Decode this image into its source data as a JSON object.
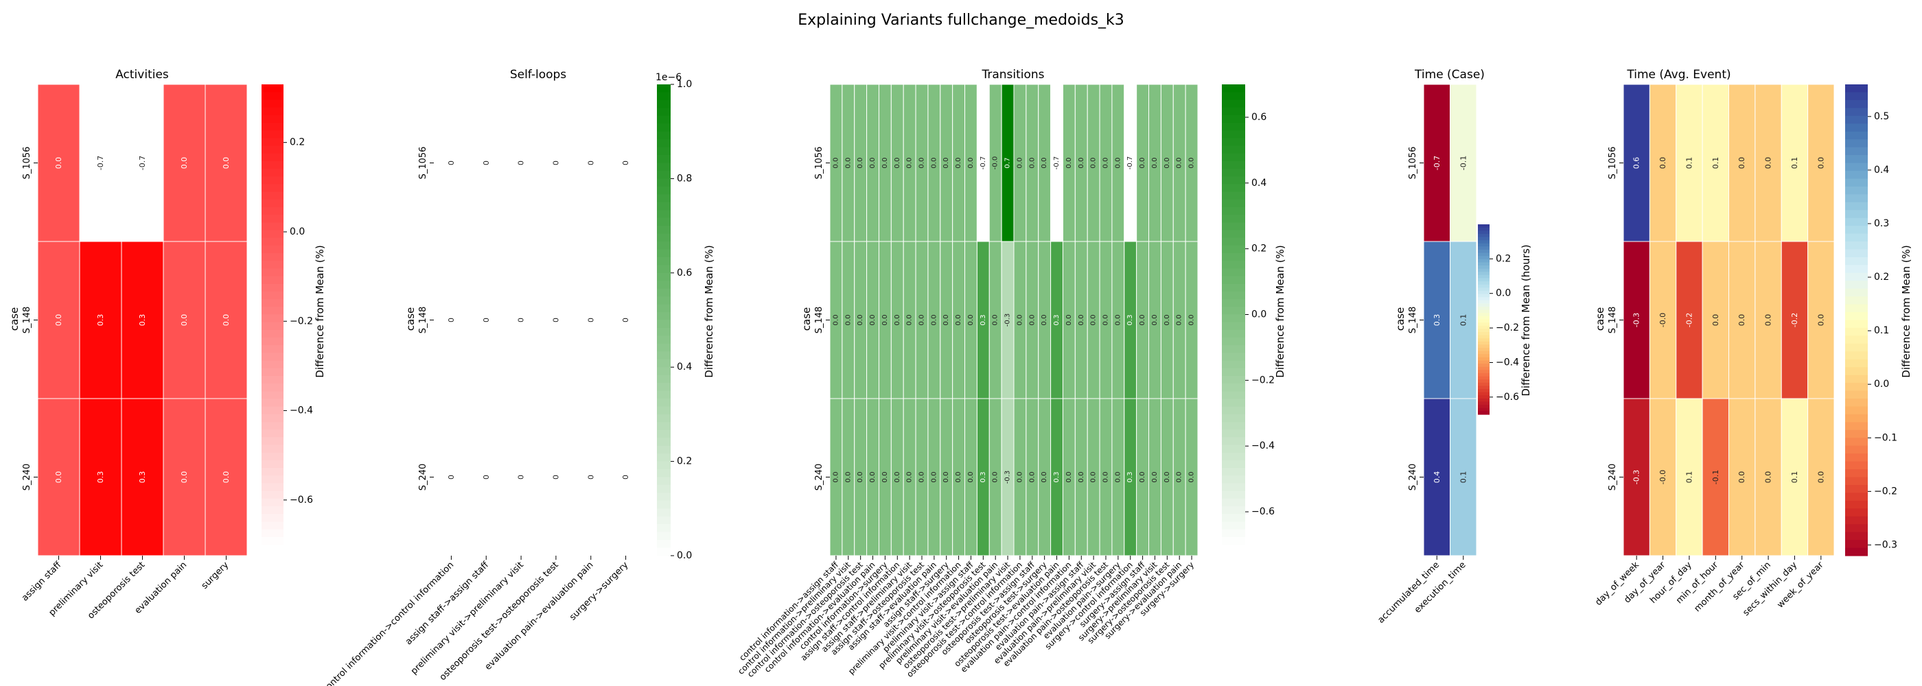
{
  "figure": {
    "title": "Explaining Variants fullchange_medoids_k3"
  },
  "chart_data": [
    {
      "type": "heatmap",
      "title": "Activities",
      "ylabel": "case",
      "colorbar_label": "Difference from Mean (%)",
      "colormap": "white-red",
      "colors": [
        "#ffffff",
        "#ff0000"
      ],
      "vmin": -0.7,
      "vmax": 0.33,
      "colorbar_ticks": [
        0.2,
        0.0,
        -0.2,
        -0.4,
        -0.6
      ],
      "colorbar_tick_labels": [
        "0.2",
        "0.0",
        "−0.2",
        "−0.4",
        "−0.6"
      ],
      "rows": [
        "S_1056",
        "S_148",
        "S_240"
      ],
      "columns": [
        "assign staff",
        "preliminary visit",
        "osteoporosis test",
        "evaluation pain",
        "surgery"
      ],
      "values": [
        [
          0.0,
          -0.7,
          -0.7,
          0.0,
          0.0
        ],
        [
          0.0,
          0.3,
          0.3,
          0.0,
          0.0
        ],
        [
          0.0,
          0.3,
          0.3,
          0.0,
          0.0
        ]
      ],
      "labels": [
        [
          "0.0",
          "-0.7",
          "-0.7",
          "0.0",
          "0.0"
        ],
        [
          "0.0",
          "0.3",
          "0.3",
          "0.0",
          "0.0"
        ],
        [
          "0.0",
          "0.3",
          "0.3",
          "0.0",
          "0.0"
        ]
      ]
    },
    {
      "type": "heatmap",
      "title": "Self-loops",
      "ylabel": "case",
      "colorbar_label": "Difference from Mean (%)",
      "colorbar_offset_text": "1e−6",
      "colormap": "white-green",
      "colors": [
        "#ffffff",
        "#008000"
      ],
      "vmin": 0.0,
      "vmax": 1.0,
      "blank_cells": true,
      "colorbar_ticks": [
        1.0,
        0.8,
        0.6,
        0.4,
        0.2,
        0.0
      ],
      "colorbar_tick_labels": [
        "1.0",
        "0.8",
        "0.6",
        "0.4",
        "0.2",
        "0.0"
      ],
      "rows": [
        "S_1056",
        "S_148",
        "S_240"
      ],
      "columns": [
        "control information->control information",
        "assign staff->assign staff",
        "preliminary visit->preliminary visit",
        "osteoporosis test->osteoporosis test",
        "evaluation pain->evaluation pain",
        "surgery->surgery"
      ],
      "values": [
        [
          0,
          0,
          0,
          0,
          0,
          0
        ],
        [
          0,
          0,
          0,
          0,
          0,
          0
        ],
        [
          0,
          0,
          0,
          0,
          0,
          0
        ]
      ],
      "labels": [
        [
          "0",
          "0",
          "0",
          "0",
          "0",
          "0"
        ],
        [
          "0",
          "0",
          "0",
          "0",
          "0",
          "0"
        ],
        [
          "0",
          "0",
          "0",
          "0",
          "0",
          "0"
        ]
      ]
    },
    {
      "type": "heatmap",
      "title": "Transitions",
      "ylabel": "case",
      "colorbar_label": "Difference from Mean (%)",
      "colormap": "white-green",
      "colors": [
        "#ffffff",
        "#008000"
      ],
      "vmin": -0.7,
      "vmax": 0.7,
      "colorbar_ticks": [
        0.6,
        0.4,
        0.2,
        0.0,
        -0.2,
        -0.4,
        -0.6
      ],
      "colorbar_tick_labels": [
        "0.6",
        "0.4",
        "0.2",
        "0.0",
        "−0.2",
        "−0.4",
        "−0.6"
      ],
      "rows": [
        "S_1056",
        "S_148",
        "S_240"
      ],
      "columns": [
        "control information->assign staff",
        "control information->preliminary visit",
        "control information->osteoporosis test",
        "control information->evaluation pain",
        "control information->surgery",
        "assign staff->control information",
        "assign staff->preliminary visit",
        "assign staff->osteoporosis test",
        "assign staff->evaluation pain",
        "assign staff->surgery",
        "preliminary visit->control information",
        "preliminary visit->assign staff",
        "preliminary visit->osteoporosis test",
        "preliminary visit->evaluation pain",
        "osteoporosis test->preliminary visit",
        "osteoporosis test->control information",
        "osteoporosis test->assign staff",
        "osteoporosis test->surgery",
        "osteoporosis test->evaluation pain",
        "evaluation pain->control information",
        "evaluation pain->assign staff",
        "evaluation pain->preliminary visit",
        "evaluation pain->osteoporosis test",
        "evaluation pain->surgery",
        "surgery->control information",
        "surgery->assign staff",
        "surgery->preliminary visit",
        "surgery->osteoporosis test",
        "surgery->evaluation pain",
        "surgery->surgery"
      ],
      "values": [
        [
          0.0,
          0.0,
          0.0,
          0.0,
          0.0,
          0.0,
          0.0,
          0.0,
          0.0,
          0.0,
          0.0,
          0.0,
          -0.7,
          -0.0,
          0.7,
          0.0,
          0.0,
          0.0,
          -0.7,
          0.0,
          0.0,
          0.0,
          0.0,
          0.0,
          -0.7,
          0.0,
          0.0,
          0.0,
          0.0,
          0.0
        ],
        [
          0.0,
          0.0,
          0.0,
          0.0,
          0.0,
          0.0,
          0.0,
          0.0,
          0.0,
          0.0,
          0.0,
          0.0,
          0.3,
          0.0,
          -0.3,
          0.0,
          0.0,
          0.0,
          0.3,
          0.0,
          0.0,
          0.0,
          0.0,
          0.0,
          0.3,
          0.0,
          0.0,
          0.0,
          0.0,
          0.0
        ],
        [
          0.0,
          0.0,
          0.0,
          0.0,
          0.0,
          0.0,
          0.0,
          0.0,
          0.0,
          0.0,
          0.0,
          0.0,
          0.3,
          0.0,
          -0.3,
          0.0,
          0.0,
          0.0,
          0.3,
          0.0,
          0.0,
          0.0,
          0.0,
          0.0,
          0.3,
          0.0,
          0.0,
          0.0,
          0.0,
          0.0
        ]
      ],
      "labels": [
        [
          "0.0",
          "0.0",
          "0.0",
          "0.0",
          "0.0",
          "0.0",
          "0.0",
          "0.0",
          "0.0",
          "0.0",
          "0.0",
          "0.0",
          "-0.7",
          "-0.0",
          "0.7",
          "0.0",
          "0.0",
          "0.0",
          "-0.7",
          "0.0",
          "0.0",
          "0.0",
          "0.0",
          "0.0",
          "-0.7",
          "0.0",
          "0.0",
          "0.0",
          "0.0",
          "0.0"
        ],
        [
          "0.0",
          "0.0",
          "0.0",
          "0.0",
          "0.0",
          "0.0",
          "0.0",
          "0.0",
          "0.0",
          "0.0",
          "0.0",
          "0.0",
          "0.3",
          "0.0",
          "-0.3",
          "0.0",
          "0.0",
          "0.0",
          "0.3",
          "0.0",
          "0.0",
          "0.0",
          "0.0",
          "0.0",
          "0.3",
          "0.0",
          "0.0",
          "0.0",
          "0.0",
          "0.0"
        ],
        [
          "0.0",
          "0.0",
          "0.0",
          "0.0",
          "0.0",
          "0.0",
          "0.0",
          "0.0",
          "0.0",
          "0.0",
          "0.0",
          "0.0",
          "0.3",
          "0.0",
          "-0.3",
          "0.0",
          "0.0",
          "0.0",
          "0.3",
          "0.0",
          "0.0",
          "0.0",
          "0.0",
          "0.0",
          "0.3",
          "0.0",
          "0.0",
          "0.0",
          "0.0",
          "0.0"
        ]
      ]
    },
    {
      "type": "heatmap",
      "title": "Time (Case)",
      "ylabel": "case",
      "colorbar_label": "Difference from Mean (hours)",
      "colormap": "RdYlBu",
      "colors": [
        "#a50026",
        "#d73027",
        "#f46d43",
        "#fdae61",
        "#fee090",
        "#ffffbf",
        "#e0f3f8",
        "#abd9e9",
        "#74add1",
        "#4575b4",
        "#313695"
      ],
      "vmin": -0.7,
      "vmax": 0.4,
      "colorbar_ticks": [
        0.2,
        0.0,
        -0.2,
        -0.4,
        -0.6
      ],
      "colorbar_tick_labels": [
        "0.2",
        "0.0",
        "−0.2",
        "−0.4",
        "−0.6"
      ],
      "rows": [
        "S_1056",
        "S_148",
        "S_240"
      ],
      "columns": [
        "accumulated_time",
        "execution_time"
      ],
      "values": [
        [
          -0.7,
          -0.1
        ],
        [
          0.3,
          0.1
        ],
        [
          0.4,
          0.1
        ]
      ],
      "labels": [
        [
          "-0.7",
          "-0.1"
        ],
        [
          "0.3",
          "0.1"
        ],
        [
          "0.4",
          "0.1"
        ]
      ]
    },
    {
      "type": "heatmap",
      "title": "Time (Avg. Event)",
      "ylabel": "case",
      "colorbar_label": "Difference from Mean (%)",
      "colormap": "RdYlBu",
      "colors": [
        "#a50026",
        "#d73027",
        "#f46d43",
        "#fdae61",
        "#fee090",
        "#ffffbf",
        "#e0f3f8",
        "#abd9e9",
        "#74add1",
        "#4575b4",
        "#313695"
      ],
      "vmin": -0.32,
      "vmax": 0.56,
      "colorbar_ticks": [
        0.5,
        0.4,
        0.3,
        0.2,
        0.1,
        0.0,
        -0.1,
        -0.2,
        -0.3
      ],
      "colorbar_tick_labels": [
        "0.5",
        "0.4",
        "0.3",
        "0.2",
        "0.1",
        "0.0",
        "−0.1",
        "−0.2",
        "−0.3"
      ],
      "rows": [
        "S_1056",
        "S_148",
        "S_240"
      ],
      "columns": [
        "day_of_week",
        "day_of_year",
        "hour_of_day",
        "min_of_hour",
        "month_of_year",
        "sec_of_min",
        "secs_within_day",
        "week_of_year"
      ],
      "values": [
        [
          0.55,
          0.0,
          0.1,
          0.1,
          0.0,
          0.0,
          0.1,
          0.0
        ],
        [
          -0.32,
          -0.0,
          -0.2,
          0.0,
          0.0,
          0.0,
          -0.2,
          0.0
        ],
        [
          -0.27,
          -0.0,
          0.1,
          -0.15,
          0.0,
          0.0,
          0.1,
          0.0
        ]
      ],
      "labels": [
        [
          "0.6",
          "0.0",
          "0.1",
          "0.1",
          "0.0",
          "0.0",
          "0.1",
          "0.0"
        ],
        [
          "-0.3",
          "-0.0",
          "-0.2",
          "0.0",
          "0.0",
          "0.0",
          "-0.2",
          "0.0"
        ],
        [
          "-0.3",
          "-0.0",
          "0.1",
          "-0.1",
          "0.0",
          "0.0",
          "0.1",
          "0.0"
        ]
      ]
    }
  ]
}
